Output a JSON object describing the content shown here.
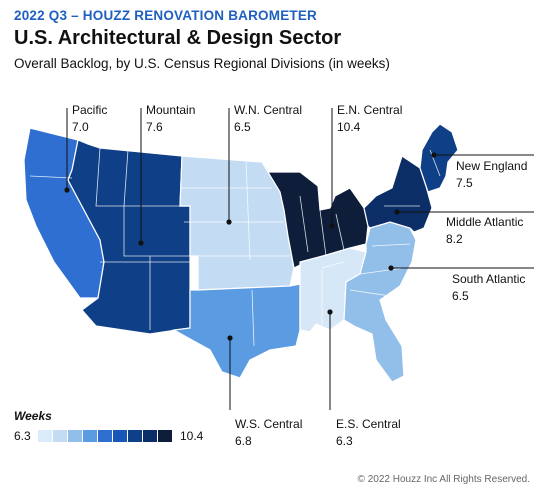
{
  "header": {
    "eyebrow": "2022 Q3 – HOUZZ RENOVATION BAROMETER",
    "title": "U.S. Architectural & Design Sector",
    "subtitle": "Overall Backlog, by U.S. Census Regional Divisions (in weeks)"
  },
  "regions": [
    {
      "id": "pacific",
      "name": "Pacific",
      "value": "7.0",
      "color": "#2f6fd2"
    },
    {
      "id": "mountain",
      "name": "Mountain",
      "value": "7.6",
      "color": "#0f3f86"
    },
    {
      "id": "wn-central",
      "name": "W.N. Central",
      "value": "6.5",
      "color": "#c3dcf4"
    },
    {
      "id": "en-central",
      "name": "E.N. Central",
      "value": "10.4",
      "color": "#0d1d3a"
    },
    {
      "id": "new-england",
      "name": "New England",
      "value": "7.5",
      "color": "#0f3f86"
    },
    {
      "id": "middle-atlantic",
      "name": "Middle Atlantic",
      "value": "8.2",
      "color": "#0b2e66"
    },
    {
      "id": "south-atlantic",
      "name": "South Atlantic",
      "value": "6.5",
      "color": "#92bfea"
    },
    {
      "id": "ws-central",
      "name": "W.S. Central",
      "value": "6.8",
      "color": "#5b9be2"
    },
    {
      "id": "es-central",
      "name": "E.S. Central",
      "value": "6.3",
      "color": "#d6e7f8"
    }
  ],
  "legend": {
    "title": "Weeks",
    "min": "6.3",
    "max": "10.4",
    "swatches": [
      "#dcebf9",
      "#c3dcf4",
      "#92bfea",
      "#5b9be2",
      "#2f6fd2",
      "#1a56b8",
      "#0f3f86",
      "#0b2e66",
      "#0d1d3a"
    ]
  },
  "footer": {
    "copyright": "© 2022 Houzz Inc All Rights Reserved."
  }
}
